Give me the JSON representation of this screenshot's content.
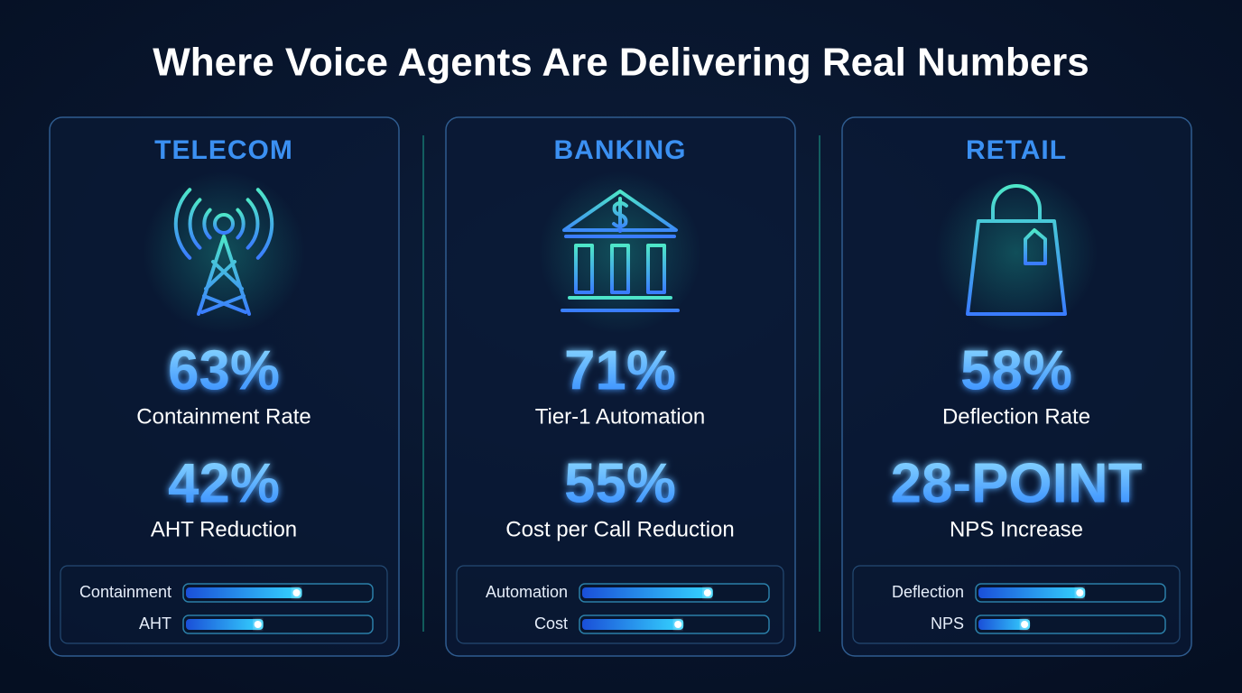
{
  "title": "Where Voice Agents Are Delivering Real Numbers",
  "xlim": [
    0,
    100
  ],
  "panels": [
    {
      "name": "TELECOM",
      "stats": [
        {
          "value": 63,
          "label": "63%",
          "caption": "Containment Rate"
        },
        {
          "value": 42,
          "label": "42%",
          "caption": "AHT Reduction"
        }
      ],
      "bars": [
        "Containment",
        "AHT"
      ]
    },
    {
      "name": "BANKING",
      "stats": [
        {
          "value": 71,
          "label": "71%",
          "caption": "Tier-1 Automation"
        },
        {
          "value": 55,
          "label": "55%",
          "caption": "Cost per Call Reduction"
        }
      ],
      "bars": [
        "Automation",
        "Cost"
      ]
    },
    {
      "name": "RETAIL",
      "stats": [
        {
          "value": 58,
          "label": "58%",
          "caption": "Deflection Rate"
        },
        {
          "value": 28,
          "label": "28-POINT",
          "caption": "NPS Increase"
        }
      ],
      "bars": [
        "Deflection",
        "NPS"
      ]
    }
  ]
}
